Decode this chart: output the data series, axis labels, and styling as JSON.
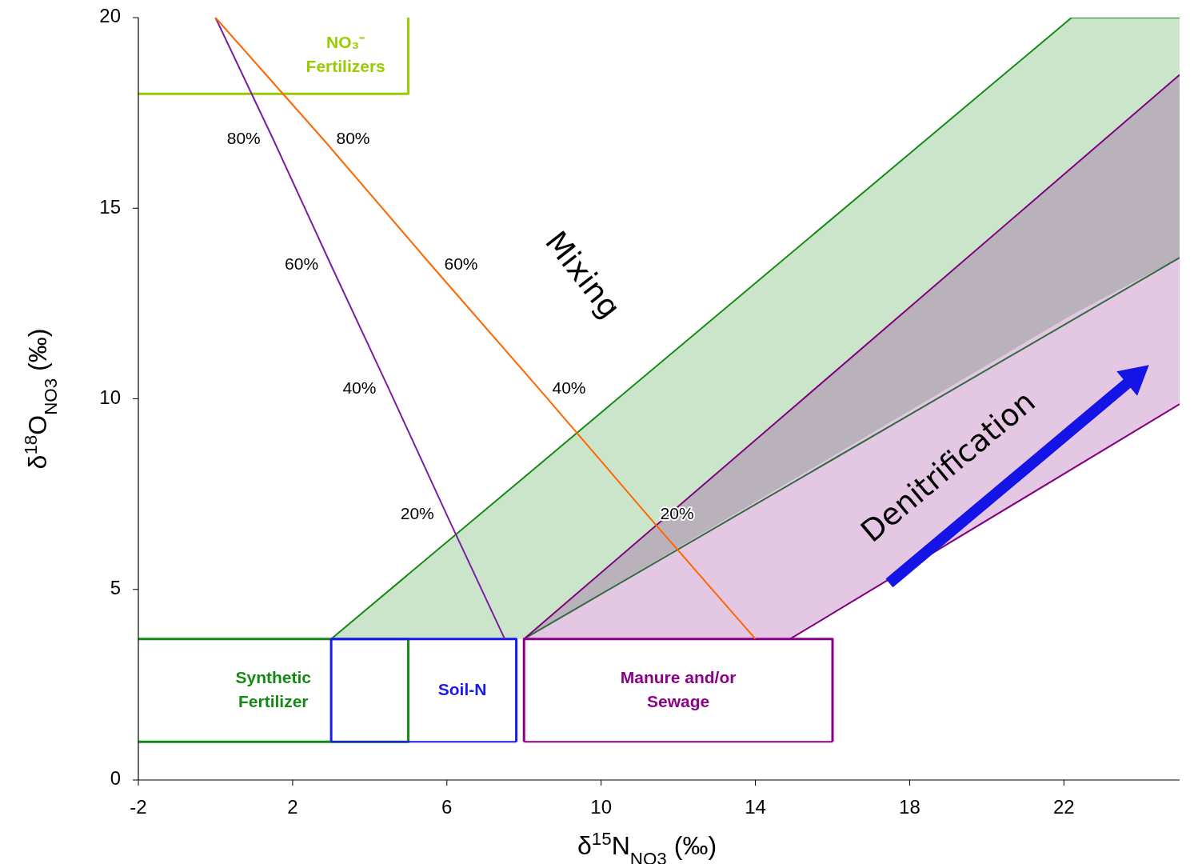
{
  "chart_data": {
    "type": "line",
    "xlabel": "δ$^{15}$N$_{NO3}$ (‰)",
    "ylabel": "δ$^{18}$O$_{NO3}$ (‰)",
    "xlim": [
      -2,
      25
    ],
    "xticks": [
      -2,
      2,
      6,
      10,
      14,
      18,
      22
    ],
    "ylim": [
      0,
      20
    ],
    "yticks": [
      0,
      5,
      10,
      15,
      20
    ],
    "series": [
      {
        "color": "#138a13",
        "x": [
          3,
          8,
          22.2,
          25
        ],
        "values": [
          3.7,
          7.94,
          20,
          20
        ],
        "lower": [
          3.7,
          3.7,
          12.2,
          13.7
        ],
        "upper": [
          3.7,
          7.94,
          20,
          20
        ]
      },
      {
        "color": "#2e6b3e",
        "x": [
          8,
          25
        ],
        "values": [
          3.7,
          13.7
        ]
      },
      {
        "color": "#800080",
        "x": [
          8,
          14.9,
          25
        ],
        "values": [
          3.7,
          9.7,
          18.5
        ],
        "lower": [
          3.7,
          3.7,
          9.86
        ],
        "upper": [
          3.7,
          9.7,
          18.5
        ]
      },
      {
        "color": "#800080",
        "x": [
          14.9,
          25
        ],
        "values": [
          3.7,
          9.86
        ]
      },
      {
        "name": "Synthetic\nFertilizer",
        "color": "#138a13",
        "x": [
          -2,
          5,
          5,
          -2
        ],
        "values": [
          3.7,
          3.7,
          1,
          1
        ]
      },
      {
        "name": "NO₃⁻\nFertilizers",
        "color": "#99cc00",
        "x": [
          -2,
          5,
          5
        ],
        "values": [
          18,
          18,
          20
        ]
      },
      {
        "name": "Soil-N",
        "color": "#1a1aee",
        "x": [
          3,
          3,
          7.8,
          7.8
        ],
        "values": [
          1,
          3.7,
          3.7,
          1
        ]
      },
      {
        "name": "Manure and/or\nSewage",
        "color": "#8a008a",
        "x": [
          8,
          8,
          16,
          16
        ],
        "values": [
          1,
          3.7,
          3.7,
          1
        ]
      },
      {
        "color": "#1a1aee",
        "x": [
          3,
          7.8
        ],
        "values": [
          1,
          1
        ]
      },
      {
        "color": "#8a008a",
        "x": [
          8,
          16
        ],
        "values": [
          1,
          1
        ]
      },
      {
        "color": "#7a1fa2",
        "x": [
          0,
          1.5,
          3,
          4.5,
          6,
          7.5
        ],
        "values": [
          20,
          16.8,
          13.5,
          10.25,
          6.95,
          3.7
        ]
      },
      {
        "color": "#ff6600",
        "x": [
          0,
          2.8,
          5.6,
          8.4,
          11.2,
          14
        ],
        "values": [
          20,
          16.8,
          13.5,
          10.25,
          6.95,
          3.7
        ]
      }
    ],
    "annotations": [
      {
        "text": "80%",
        "x": 1.5,
        "y": 16.8
      },
      {
        "text": "60%",
        "x": 3,
        "y": 13.5
      },
      {
        "text": "40%",
        "x": 4.5,
        "y": 10.25
      },
      {
        "text": "20%",
        "x": 6,
        "y": 6.95
      },
      {
        "text": "80%",
        "x": 2.8,
        "y": 16.8
      },
      {
        "text": "60%",
        "x": 5.6,
        "y": 13.5
      },
      {
        "text": "40%",
        "x": 8.4,
        "y": 10.25
      },
      {
        "text": "20%",
        "x": 11.2,
        "y": 6.95
      },
      "Mixing",
      "Denitrification"
    ]
  }
}
